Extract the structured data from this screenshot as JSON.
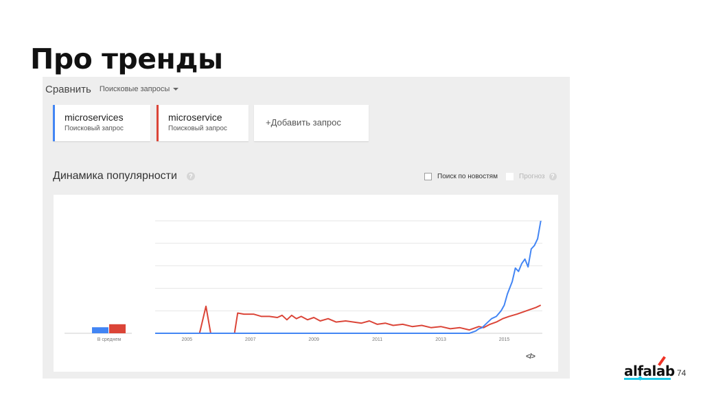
{
  "slide": {
    "title": "Про тренды",
    "page_number": "74"
  },
  "compare": {
    "label": "Сравнить",
    "select_value": "Поисковые запросы"
  },
  "terms": [
    {
      "name": "microservices",
      "type": "Поисковый запрос",
      "color": "#4285f4"
    },
    {
      "name": "microservice",
      "type": "Поисковый запрос",
      "color": "#db4437"
    }
  ],
  "add_query_label": "+Добавить запрос",
  "section": {
    "title": "Динамика популярности",
    "help": "?",
    "news_option": "Поиск по новостям",
    "forecast_option": "Прогноз"
  },
  "embed_icon": "</>",
  "logo": {
    "text": "alfalab",
    "brand_color": "#ef3124",
    "accent_color": "#1ec9e8"
  },
  "chart_data": {
    "type": "line",
    "x_tick_labels": [
      "2005",
      "2007",
      "2009",
      "2011",
      "2013",
      "2015"
    ],
    "average_label": "В среднем",
    "averages": [
      {
        "series": "microservices",
        "value": 4
      },
      {
        "series": "microservice",
        "value": 6
      }
    ],
    "ylim": [
      0,
      100
    ],
    "grid": true,
    "series": [
      {
        "name": "microservices",
        "color": "#4285f4",
        "points": [
          [
            2004.0,
            0
          ],
          [
            2013.9,
            0
          ],
          [
            2014.1,
            2
          ],
          [
            2014.2,
            4
          ],
          [
            2014.3,
            5
          ],
          [
            2014.45,
            9
          ],
          [
            2014.6,
            13
          ],
          [
            2014.75,
            15
          ],
          [
            2014.9,
            20
          ],
          [
            2015.0,
            25
          ],
          [
            2015.1,
            35
          ],
          [
            2015.25,
            46
          ],
          [
            2015.35,
            58
          ],
          [
            2015.45,
            55
          ],
          [
            2015.55,
            62
          ],
          [
            2015.65,
            66
          ],
          [
            2015.75,
            59
          ],
          [
            2015.85,
            75
          ],
          [
            2015.95,
            78
          ],
          [
            2016.05,
            84
          ],
          [
            2016.15,
            100
          ]
        ]
      },
      {
        "name": "microservice",
        "color": "#db4437",
        "points": [
          [
            2004.0,
            0
          ],
          [
            2005.4,
            0
          ],
          [
            2005.6,
            24
          ],
          [
            2005.75,
            0
          ],
          [
            2006.5,
            0
          ],
          [
            2006.6,
            18
          ],
          [
            2006.8,
            17
          ],
          [
            2007.1,
            17
          ],
          [
            2007.35,
            15
          ],
          [
            2007.6,
            15
          ],
          [
            2007.85,
            14
          ],
          [
            2008.0,
            16
          ],
          [
            2008.15,
            12
          ],
          [
            2008.3,
            16
          ],
          [
            2008.45,
            13
          ],
          [
            2008.6,
            15
          ],
          [
            2008.8,
            12
          ],
          [
            2009.0,
            14
          ],
          [
            2009.2,
            11
          ],
          [
            2009.45,
            13
          ],
          [
            2009.7,
            10
          ],
          [
            2010.0,
            11
          ],
          [
            2010.25,
            10
          ],
          [
            2010.5,
            9
          ],
          [
            2010.75,
            11
          ],
          [
            2011.0,
            8
          ],
          [
            2011.25,
            9
          ],
          [
            2011.5,
            7
          ],
          [
            2011.8,
            8
          ],
          [
            2012.1,
            6
          ],
          [
            2012.4,
            7
          ],
          [
            2012.7,
            5
          ],
          [
            2013.0,
            6
          ],
          [
            2013.3,
            4
          ],
          [
            2013.6,
            5
          ],
          [
            2013.9,
            3
          ],
          [
            2014.2,
            6
          ],
          [
            2014.35,
            5
          ],
          [
            2014.55,
            8
          ],
          [
            2014.75,
            10
          ],
          [
            2014.95,
            13
          ],
          [
            2015.15,
            15
          ],
          [
            2015.4,
            17
          ],
          [
            2015.6,
            19
          ],
          [
            2015.8,
            21
          ],
          [
            2016.0,
            23
          ],
          [
            2016.15,
            25
          ]
        ]
      }
    ]
  }
}
